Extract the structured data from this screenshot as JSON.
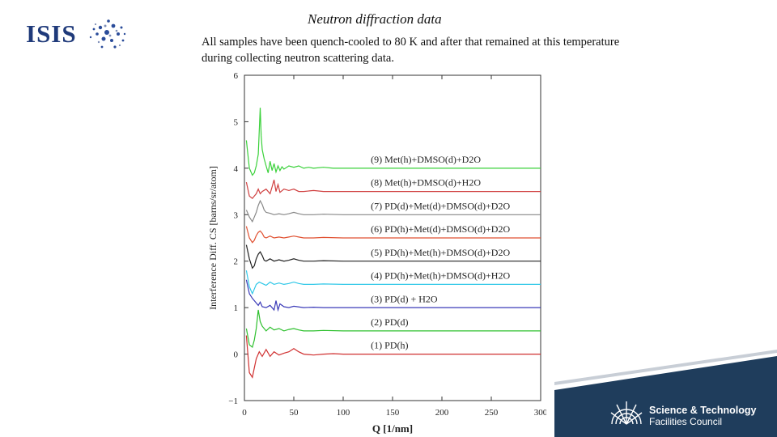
{
  "header": {
    "logo_text": "ISIS",
    "title": "Neutron diffraction data",
    "description": "All samples have been quench-cooled to 80 K and after that remained at this temperature during collecting neutron scattering data."
  },
  "footer": {
    "org_line1": "Science & Technology",
    "org_line2": "Facilities Council",
    "band_color": "#1f3d5c"
  },
  "chart_data": {
    "type": "line",
    "title": "",
    "xlabel": "Q [1/nm]",
    "ylabel": "Interference Diff. CS [barns/sr/atom]",
    "xlim": [
      0,
      300
    ],
    "ylim": [
      -1,
      6
    ],
    "xticks": [
      "0",
      "50",
      "100",
      "150",
      "200",
      "250",
      "300"
    ],
    "yticks": [
      "−1",
      "0",
      "1",
      "2",
      "3",
      "4",
      "5",
      "6"
    ],
    "grid": false,
    "series": [
      {
        "name": "(1) PD(h)",
        "color": "#d03030",
        "baseline": 0.0,
        "x": [
          2,
          5,
          8,
          10,
          12,
          15,
          18,
          22,
          26,
          30,
          35,
          40,
          45,
          50,
          55,
          60,
          70,
          80,
          90,
          100,
          120,
          150,
          200,
          250,
          300
        ],
        "y": [
          0.4,
          -0.4,
          -0.5,
          -0.3,
          -0.1,
          0.05,
          -0.05,
          0.1,
          -0.05,
          0.05,
          -0.02,
          0.02,
          0.05,
          0.12,
          0.05,
          0.0,
          -0.02,
          0.0,
          0.01,
          0.0,
          0.0,
          0.0,
          0.0,
          0.0,
          0.0
        ]
      },
      {
        "name": "(2) PD(d)",
        "color": "#2ec02e",
        "baseline": 0.5,
        "x": [
          2,
          5,
          8,
          10,
          12,
          14,
          16,
          18,
          22,
          26,
          30,
          35,
          40,
          45,
          50,
          55,
          60,
          70,
          80,
          100,
          150,
          200,
          250,
          300
        ],
        "y": [
          0.05,
          -0.3,
          -0.35,
          -0.2,
          0.05,
          0.45,
          0.2,
          0.1,
          0.0,
          0.08,
          0.02,
          0.05,
          0.0,
          0.03,
          0.05,
          0.02,
          0.0,
          0.0,
          0.01,
          0.0,
          0.0,
          0.0,
          0.0,
          0.0
        ]
      },
      {
        "name": "(3) PD(d) + H2O",
        "color": "#3a3ab8",
        "baseline": 1.0,
        "x": [
          2,
          5,
          8,
          10,
          12,
          14,
          16,
          18,
          22,
          26,
          30,
          32,
          34,
          36,
          40,
          45,
          50,
          60,
          70,
          80,
          100,
          150,
          200,
          250,
          300
        ],
        "y": [
          0.6,
          0.3,
          0.2,
          0.15,
          0.1,
          0.05,
          0.12,
          0.02,
          0.0,
          0.05,
          -0.05,
          0.15,
          -0.05,
          0.08,
          0.02,
          0.0,
          0.03,
          0.0,
          0.01,
          0.0,
          0.0,
          0.0,
          0.0,
          0.0,
          0.0
        ]
      },
      {
        "name": "(4) PD(h)+Met(h)+DMSO(d)+H2O",
        "color": "#30c8e8",
        "baseline": 1.5,
        "x": [
          2,
          5,
          8,
          10,
          12,
          15,
          18,
          22,
          26,
          30,
          35,
          40,
          45,
          50,
          55,
          60,
          70,
          80,
          100,
          150,
          200,
          250,
          300
        ],
        "y": [
          0.3,
          -0.05,
          -0.2,
          -0.1,
          0.0,
          0.05,
          0.02,
          -0.02,
          0.05,
          0.0,
          0.03,
          0.0,
          0.02,
          0.05,
          0.02,
          0.0,
          0.0,
          0.01,
          0.0,
          0.0,
          0.0,
          0.0,
          0.0
        ]
      },
      {
        "name": "(5) PD(h)+Met(h)+DMSO(d)+D2O",
        "color": "#222222",
        "baseline": 2.0,
        "x": [
          2,
          5,
          8,
          10,
          12,
          14,
          16,
          18,
          20,
          22,
          26,
          30,
          35,
          40,
          45,
          50,
          55,
          60,
          70,
          80,
          100,
          150,
          200,
          250,
          300
        ],
        "y": [
          0.35,
          0.05,
          -0.15,
          -0.1,
          0.05,
          0.15,
          0.2,
          0.12,
          0.02,
          0.0,
          0.05,
          0.0,
          0.03,
          0.0,
          0.02,
          0.05,
          0.02,
          0.0,
          0.0,
          0.01,
          0.0,
          0.0,
          0.0,
          0.0,
          0.0
        ]
      },
      {
        "name": "(6) PD(h)+Met(d)+DMSO(d)+D2O",
        "color": "#e05030",
        "baseline": 2.5,
        "x": [
          2,
          5,
          8,
          10,
          12,
          14,
          16,
          18,
          20,
          22,
          26,
          30,
          35,
          40,
          45,
          50,
          55,
          60,
          70,
          80,
          100,
          150,
          200,
          250,
          300
        ],
        "y": [
          0.25,
          0.0,
          -0.1,
          -0.05,
          0.05,
          0.12,
          0.15,
          0.1,
          0.02,
          0.0,
          0.04,
          0.0,
          0.02,
          0.0,
          0.02,
          0.04,
          0.02,
          0.0,
          0.0,
          0.01,
          0.0,
          0.0,
          0.0,
          0.0,
          0.0
        ]
      },
      {
        "name": "(7) PD(d)+Met(d)+DMSO(d)+D2O",
        "color": "#888888",
        "baseline": 3.0,
        "x": [
          2,
          5,
          8,
          10,
          12,
          14,
          16,
          18,
          20,
          22,
          26,
          30,
          35,
          40,
          45,
          50,
          55,
          60,
          70,
          80,
          100,
          150,
          200,
          250,
          300
        ],
        "y": [
          0.1,
          -0.05,
          -0.15,
          -0.05,
          0.05,
          0.2,
          0.3,
          0.22,
          0.1,
          0.05,
          0.03,
          0.0,
          0.02,
          0.0,
          0.02,
          0.05,
          0.02,
          0.0,
          0.0,
          0.01,
          0.0,
          0.0,
          0.0,
          0.0,
          0.0
        ]
      },
      {
        "name": "(8) Met(h)+DMSO(d)+H2O",
        "color": "#d04040",
        "baseline": 3.5,
        "x": [
          2,
          5,
          8,
          10,
          12,
          14,
          16,
          18,
          22,
          26,
          28,
          30,
          32,
          34,
          36,
          40,
          45,
          50,
          55,
          60,
          70,
          80,
          100,
          150,
          200,
          250,
          300
        ],
        "y": [
          0.2,
          -0.1,
          -0.15,
          -0.1,
          -0.05,
          0.05,
          -0.05,
          0.0,
          0.05,
          -0.05,
          0.1,
          0.25,
          0.0,
          0.15,
          -0.02,
          0.05,
          0.02,
          0.05,
          0.0,
          0.0,
          0.02,
          0.0,
          0.0,
          0.0,
          0.0,
          0.0,
          0.0
        ]
      },
      {
        "name": "(9) Met(h)+DMSO(d)+D2O",
        "color": "#3ad13a",
        "baseline": 4.0,
        "x": [
          2,
          5,
          8,
          10,
          12,
          14,
          15,
          16,
          17,
          18,
          20,
          22,
          24,
          26,
          28,
          30,
          32,
          34,
          36,
          38,
          40,
          45,
          50,
          55,
          60,
          65,
          70,
          80,
          90,
          100,
          150,
          200,
          250,
          300
        ],
        "y": [
          0.6,
          0.0,
          -0.15,
          -0.1,
          0.05,
          0.3,
          0.8,
          1.3,
          0.7,
          0.4,
          0.2,
          0.05,
          -0.1,
          0.15,
          -0.05,
          0.1,
          -0.08,
          0.05,
          -0.05,
          0.03,
          -0.02,
          0.05,
          0.02,
          0.05,
          0.0,
          0.02,
          0.0,
          0.02,
          0.0,
          0.0,
          0.0,
          0.0,
          0.0,
          0.0
        ]
      }
    ]
  }
}
